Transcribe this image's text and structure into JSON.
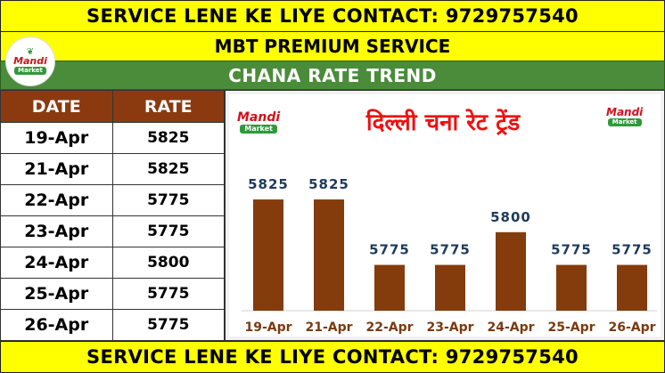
{
  "banner": {
    "text": "SERVICE LENE KE LIYE CONTACT: 9729757540"
  },
  "subtitle": "MBT PREMIUM SERVICE",
  "trend_title": "CHANA RATE TREND",
  "logo": {
    "word": "Mandi",
    "tag": "Market",
    "leaf": "❦"
  },
  "table": {
    "headers": {
      "date": "DATE",
      "rate": "RATE"
    },
    "rows": [
      {
        "date": "19-Apr",
        "rate": "5825"
      },
      {
        "date": "21-Apr",
        "rate": "5825"
      },
      {
        "date": "22-Apr",
        "rate": "5775"
      },
      {
        "date": "23-Apr",
        "rate": "5775"
      },
      {
        "date": "24-Apr",
        "rate": "5800"
      },
      {
        "date": "25-Apr",
        "rate": "5775"
      },
      {
        "date": "26-Apr",
        "rate": "5775"
      }
    ]
  },
  "colors": {
    "banner": "#ffff00",
    "trend_bar": "#4a8c3a",
    "table_header": "#8b3a10",
    "bar": "#843c0c",
    "chart_title": "#ee1111"
  },
  "chart_data": {
    "type": "bar",
    "title": "दिल्ली चना रेट ट्रेंड",
    "categories": [
      "19-Apr",
      "21-Apr",
      "22-Apr",
      "23-Apr",
      "24-Apr",
      "25-Apr",
      "26-Apr"
    ],
    "values": [
      5825,
      5825,
      5775,
      5775,
      5800,
      5775,
      5775
    ],
    "data_labels": [
      "5825",
      "5825",
      "5775",
      "5775",
      "5800",
      "5775",
      "5775"
    ],
    "xlabel": "",
    "ylabel": "",
    "ylim": [
      5740,
      5840
    ],
    "grid": false,
    "legend": "none"
  }
}
